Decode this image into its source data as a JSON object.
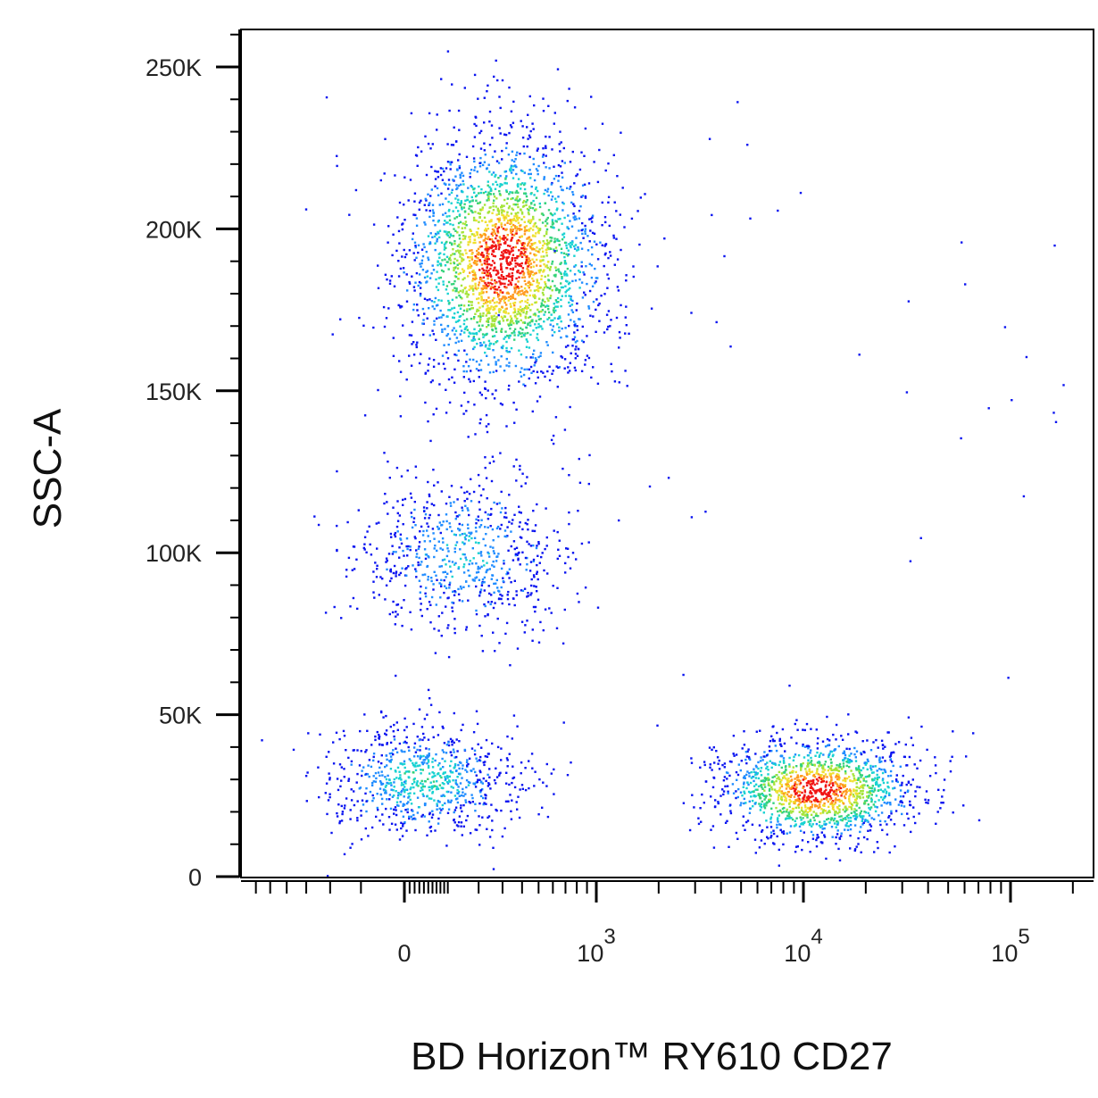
{
  "chart_data": {
    "type": "scatter",
    "style": "flow-cytometry pseudocolor density dot plot",
    "xlabel": "BD Horizon™ RY610 CD27",
    "ylabel": "SSC-A",
    "x_scale": "biexponential (logicle)",
    "x_range": [
      -600,
      150000
    ],
    "y_range": [
      0,
      262144
    ],
    "y_ticks": [
      {
        "value": 0,
        "label": "0"
      },
      {
        "value": 50000,
        "label": "50K"
      },
      {
        "value": 100000,
        "label": "100K"
      },
      {
        "value": 150000,
        "label": "150K"
      },
      {
        "value": 200000,
        "label": "200K"
      },
      {
        "value": 250000,
        "label": "250K"
      }
    ],
    "x_ticks": [
      {
        "value": 0,
        "base": "0",
        "exp": ""
      },
      {
        "value": 1000,
        "base": "10",
        "exp": "3"
      },
      {
        "value": 10000,
        "base": "10",
        "exp": "4"
      },
      {
        "value": 100000,
        "base": "10",
        "exp": "5"
      }
    ],
    "grid": false,
    "legend": "none",
    "density_colors": [
      "#0a14f0",
      "#1f8cff",
      "#18d2d2",
      "#35d27a",
      "#a5e43a",
      "#f0e030",
      "#ff9a20",
      "#f01414"
    ],
    "populations": [
      {
        "description": "SSC-high cluster, CD27 negative to dim",
        "cx": 300,
        "cy": 190000,
        "n": 2600,
        "peak": 1.0
      },
      {
        "description": "SSC-intermediate cluster, CD27 negative to dim",
        "cx": 140,
        "cy": 100000,
        "n": 700,
        "peak": 0.35
      },
      {
        "description": "SSC-low cluster, CD27 negative",
        "cx": 40,
        "cy": 30000,
        "n": 800,
        "peak": 0.45
      },
      {
        "description": "SSC-low cluster, CD27 positive",
        "cx": 11500,
        "cy": 27000,
        "n": 1500,
        "peak": 1.0
      }
    ]
  }
}
